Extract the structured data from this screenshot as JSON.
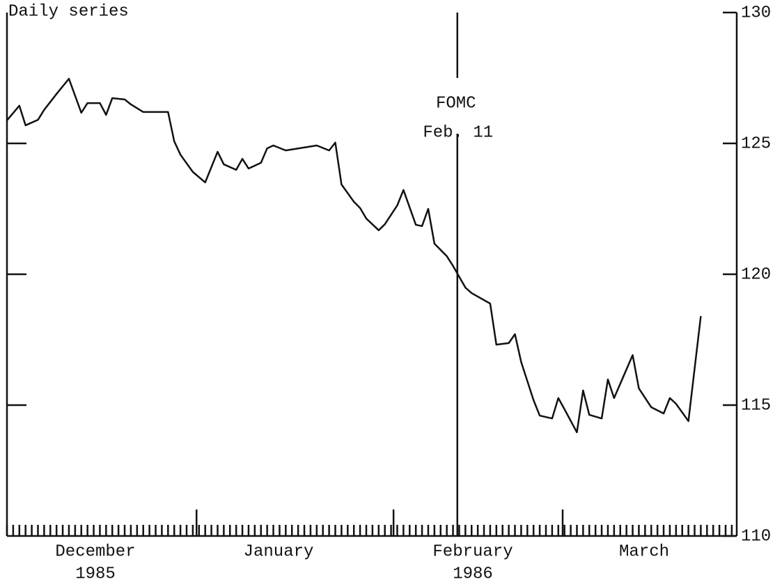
{
  "chart_data": {
    "type": "line",
    "title": "Daily series",
    "x": [
      0,
      2,
      3,
      5,
      6,
      8,
      10,
      12,
      13,
      15,
      16,
      17,
      19,
      20,
      22,
      26,
      27,
      28,
      30,
      32,
      34,
      35,
      37,
      38,
      39,
      41,
      42,
      43,
      45,
      50,
      52,
      53,
      54,
      56,
      57,
      58,
      60,
      61,
      63,
      64,
      66,
      67,
      68,
      69,
      71,
      72,
      74,
      75,
      78,
      79,
      81,
      82,
      83,
      85,
      86,
      88,
      89,
      90,
      92,
      93,
      94,
      96,
      97,
      98,
      101,
      102,
      104,
      106,
      107,
      108,
      110,
      112
    ],
    "series": [
      {
        "name": "Daily series",
        "color": "#111111",
        "values": [
          125.88,
          126.44,
          125.69,
          125.9,
          126.28,
          126.89,
          127.47,
          126.17,
          126.54,
          126.54,
          126.09,
          126.73,
          126.68,
          126.49,
          126.2,
          126.2,
          125.08,
          124.57,
          123.91,
          123.51,
          124.68,
          124.2,
          123.99,
          124.41,
          124.04,
          124.26,
          124.81,
          124.92,
          124.73,
          124.92,
          124.73,
          125.03,
          123.43,
          122.77,
          122.53,
          122.13,
          121.68,
          121.91,
          122.63,
          123.22,
          121.89,
          121.84,
          122.5,
          121.17,
          120.69,
          120.32,
          119.49,
          119.28,
          118.88,
          117.31,
          117.37,
          117.71,
          116.65,
          115.19,
          114.6,
          114.49,
          115.27,
          114.84,
          113.96,
          115.56,
          114.63,
          114.49,
          115.98,
          115.27,
          116.91,
          115.64,
          114.92,
          114.68,
          115.27,
          115.05,
          114.39,
          118.4
        ]
      }
    ],
    "xlim": [
      0,
      117.8
    ],
    "ylim": [
      110,
      130
    ],
    "yticks": [
      110,
      115,
      120,
      125,
      130
    ],
    "months": [
      "December",
      "January",
      "February",
      "March"
    ],
    "years": [
      "1985",
      "1986"
    ],
    "event": {
      "x": 72.7,
      "label": [
        "FOMC",
        "Feb. 11"
      ]
    }
  }
}
